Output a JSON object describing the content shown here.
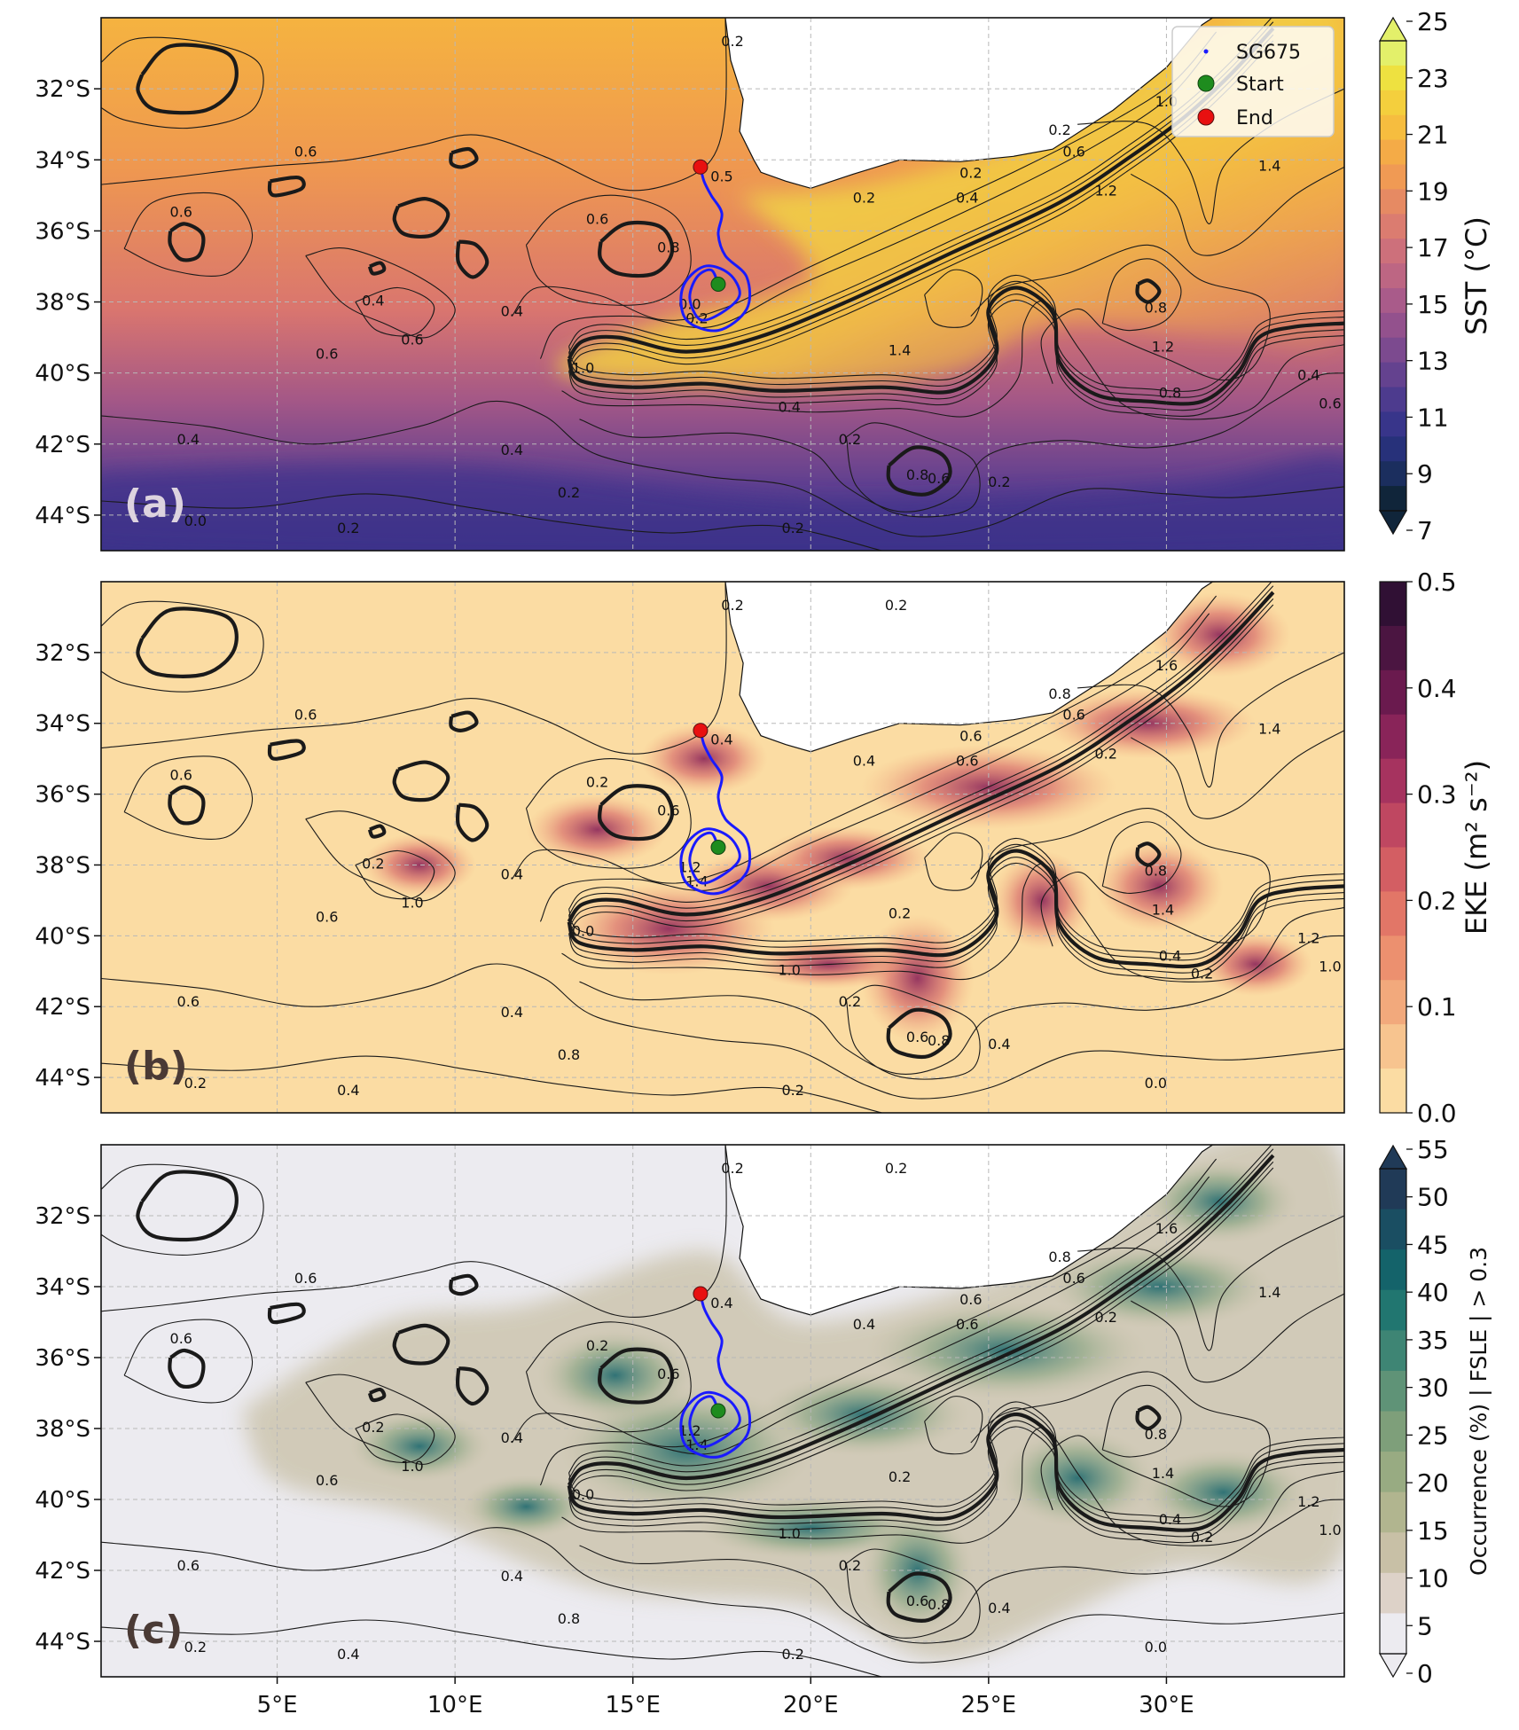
{
  "figure": {
    "lon_ticks": [
      "5°E",
      "10°E",
      "15°E",
      "20°E",
      "25°E",
      "30°E"
    ],
    "lat_ticks": [
      "32°S",
      "34°S",
      "36°S",
      "38°S",
      "40°S",
      "42°S",
      "44°S"
    ]
  },
  "legend": {
    "items": [
      {
        "label": "SG675",
        "color": "#1a1aff",
        "marker": "point"
      },
      {
        "label": "Start",
        "color": "#1e8c1e",
        "marker": "circle"
      },
      {
        "label": "End",
        "color": "#e81010",
        "marker": "circle"
      }
    ]
  },
  "panels": [
    {
      "label": "(a)",
      "label_color": "#ddd3df",
      "variable": "SST",
      "colorbar": {
        "label": "SST (°C)",
        "ticks": [
          "7",
          "9",
          "11",
          "13",
          "15",
          "17",
          "19",
          "21",
          "23",
          "25"
        ],
        "colors": [
          "#10253a",
          "#1b2e5e",
          "#27317a",
          "#38358a",
          "#4d3b8e",
          "#64428f",
          "#7c4a8f",
          "#93518d",
          "#a95b8a",
          "#bd6683",
          "#cd707b",
          "#db7c70",
          "#e68a63",
          "#f09a54",
          "#f4ab47",
          "#f6bd3f",
          "#f4cf3d",
          "#eee140",
          "#e3f06a"
        ],
        "extend": "both"
      }
    },
    {
      "label": "(b)",
      "label_color": "#4a3a35",
      "variable": "EKE",
      "colorbar": {
        "label": "EKE (m² s⁻²)",
        "ticks": [
          "0.0",
          "0.1",
          "0.2",
          "0.3",
          "0.4",
          "0.5"
        ],
        "colors": [
          "#fbdca3",
          "#f7c48f",
          "#f2a97c",
          "#ec906f",
          "#e27667",
          "#d35e63",
          "#bf4761",
          "#a6335f",
          "#892459",
          "#6a1a4e",
          "#4b1541",
          "#301034"
        ],
        "extend": "none"
      }
    },
    {
      "label": "(c)",
      "label_color": "#4a3a35",
      "variable": "FSLE",
      "colorbar": {
        "label": "Occurrence (%) | FSLE | > 0.3",
        "ticks": [
          "0",
          "5",
          "10",
          "15",
          "20",
          "25",
          "30",
          "35",
          "40",
          "45",
          "50",
          "55"
        ],
        "colors": [
          "#ecebf0",
          "#ddd2c8",
          "#c8c0a6",
          "#b1b58f",
          "#98ab82",
          "#7e9f7a",
          "#5f9377",
          "#3e8574",
          "#217670",
          "#14636a",
          "#1a4e62",
          "#203a57"
        ],
        "extend": "both"
      }
    }
  ],
  "contour_labels": {
    "a": [
      "0.2",
      "0.6",
      "0.6",
      "0.5",
      "0.6",
      "0.8",
      "0.2",
      "0.4",
      "0.2",
      "0.2",
      "0.6",
      "1.0",
      "1.2",
      "1.4",
      "0.4",
      "0.4",
      "0.6",
      "0.6",
      "0.0",
      "0.2",
      "1.0",
      "0.4",
      "1.4",
      "1.2",
      "0.8",
      "0.4",
      "0.6",
      "0.8",
      "0.4",
      "0.2",
      "0.8",
      "0.6",
      "0.2",
      "0.4",
      "0.2",
      "0.2",
      "0.0",
      "0.2"
    ],
    "b": [
      "0.2",
      "0.6",
      "0.6",
      "0.4",
      "0.2",
      "0.6",
      "0.4",
      "0.6",
      "0.6",
      "0.8",
      "0.6",
      "0.0",
      "0.2",
      "0.2",
      "0.2",
      "0.4",
      "0.6",
      "1.0",
      "1.2",
      "1.4",
      "1.6",
      "1.0",
      "1.4",
      "1.4",
      "0.8",
      "1.2",
      "1.0",
      "0.4",
      "0.4",
      "0.2",
      "0.6",
      "0.8",
      "0.4",
      "0.6",
      "0.8",
      "0.4",
      "0.2",
      "0.2",
      "0.0",
      "0.2",
      "0.2"
    ],
    "c": [
      "0.2",
      "0.6",
      "0.6",
      "0.4",
      "0.2",
      "0.6",
      "0.4",
      "0.6",
      "0.6",
      "0.8",
      "0.6",
      "0.0",
      "0.2",
      "0.2",
      "0.2",
      "0.4",
      "0.6",
      "1.0",
      "1.2",
      "1.4",
      "1.6",
      "1.0",
      "1.4",
      "1.4",
      "0.8",
      "1.2",
      "1.0",
      "0.4",
      "0.4",
      "0.2",
      "0.6",
      "0.8",
      "0.4",
      "0.6",
      "0.8",
      "0.4",
      "0.2",
      "0.2",
      "0.0",
      "0.2",
      "0.2"
    ]
  }
}
